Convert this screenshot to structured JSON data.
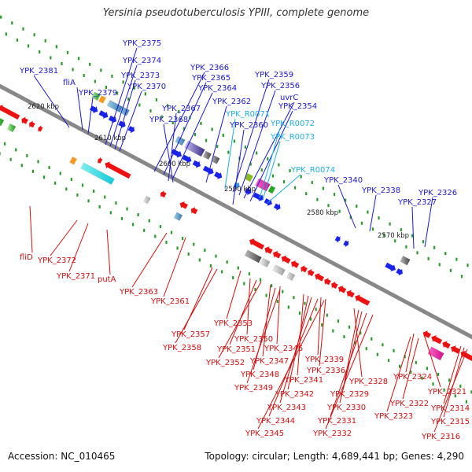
{
  "title": "Yersinia pseudotuberculosis YPIII, complete genome",
  "footer": {
    "accession": "Accession: NC_010465",
    "topology": "Topology: circular; Length: 4,689,441 bp; Genes: 4,290"
  },
  "colors": {
    "forward_label": "#1a1ad0",
    "rna_label": "#22aee6",
    "reverse_label": "#d01010",
    "backbone": "#888888",
    "tick": "#2a9a2a"
  },
  "kbp_ticks": [
    "2620 kbp",
    "2610 kbp",
    "2600 kbp",
    "2590 kbp",
    "2580 kbp",
    "2570 kbp"
  ],
  "forward_labels": [
    "YPK_2381",
    "fliA",
    "YPK_2379",
    "YPK_2375",
    "YPK_2374",
    "YPK_2373",
    "YPK_2370",
    "YPK_2366",
    "YPK_2365",
    "YPK_2364",
    "YPK_2367",
    "YPK_2368",
    "YPK_2362",
    "YPK_2359",
    "YPK_2356",
    "uvrC",
    "YPK_2354",
    "YPK_2360",
    "YPK_2340",
    "YPK_2338",
    "YPK_2326",
    "YPK_2327"
  ],
  "rna_labels": [
    "YPK_R0071",
    "YPK_R0072",
    "YPK_R0073",
    "YPK_R0074"
  ],
  "reverse_labels": [
    "fliD",
    "YPK_2372",
    "YPK_2371",
    "putA",
    "YPK_2363",
    "YPK_2361",
    "YPK_2353",
    "YPK_2357",
    "YPK_2358",
    "YPK_2350",
    "YPK_2351",
    "YPK_2352",
    "YPK_2347",
    "YPK_2346",
    "YPK_2348",
    "YPK_2349",
    "YPK_2339",
    "YPK_2336",
    "YPK_2341",
    "YPK_2342",
    "YPK_2343",
    "YPK_2344",
    "YPK_2345",
    "YPK_2328",
    "YPK_2329",
    "YPK_2330",
    "YPK_2331",
    "YPK_2332",
    "YPK_2324",
    "YPK_2321",
    "YPK_2322",
    "YPK_2323",
    "YPK_2314",
    "YPK_2315",
    "YPK_2316"
  ]
}
